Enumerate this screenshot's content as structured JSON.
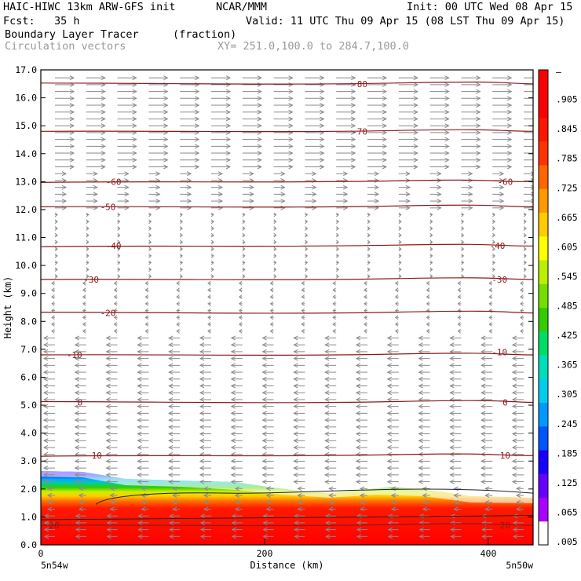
{
  "header": {
    "model": "HAIC-HIWC 13km ARW-GFS init",
    "org": "NCAR/MMM",
    "init": "Init: 00 UTC Wed 08 Apr 15",
    "fcst": "Fcst:   35 h",
    "valid": "Valid: 11 UTC Thu 09 Apr 15 (08 LST Thu 09 Apr 15)",
    "field": "Boundary Layer Tracer",
    "field_unit": "(fraction)",
    "vectors": "Circulation vectors",
    "xy": "XY= 251.0,100.0 to 284.7,100.0"
  },
  "chart_data": {
    "type": "cross-section",
    "xlabel": "Distance (km)",
    "ylabel": "Height (km)",
    "xlim": [
      0,
      440
    ],
    "ylim": [
      0,
      17
    ],
    "x_ticks": [
      "0",
      "200",
      "400"
    ],
    "x_endpoints": {
      "left": "5n54w",
      "right": "5n50w"
    },
    "y_ticks": [
      "0.0",
      "1.0",
      "2.0",
      "3.0",
      "4.0",
      "5.0",
      "6.0",
      "7.0",
      "8.0",
      "9.0",
      "10.0",
      "11.0",
      "12.0",
      "13.0",
      "14.0",
      "15.0",
      "16.0",
      "17.0"
    ],
    "colorbar_labels": [
      ".005",
      ".065",
      ".125",
      ".185",
      ".245",
      ".305",
      ".365",
      ".425",
      ".485",
      ".545",
      ".605",
      ".665",
      ".725",
      ".785",
      ".845",
      ".905",
      "–"
    ],
    "colorbar_colors": [
      "#ffffff",
      "#aa00ff",
      "#6600ff",
      "#1a00ff",
      "#0055ff",
      "#0099ff",
      "#00ccee",
      "#00ddbb",
      "#00dd66",
      "#33cc00",
      "#77dd00",
      "#bbee00",
      "#ffff00",
      "#ffcc00",
      "#ff9900",
      "#ff6600",
      "#ff3300",
      "#ff1500",
      "#ff0000",
      "#ff0000"
    ],
    "contour_color": "#8b1a1a",
    "temperature_contours": [
      {
        "label": "-80",
        "height": 16.5,
        "label_x": 285
      },
      {
        "label": "-70",
        "height": 14.8,
        "label_x": 285
      },
      {
        "label": "-60",
        "height": 13.0,
        "label_x": 65
      },
      {
        "label": "-60",
        "height": 13.0,
        "label_x": 415
      },
      {
        "label": "-50",
        "height": 12.1,
        "label_x": 60
      },
      {
        "label": "-40",
        "height": 10.7,
        "label_x": 65
      },
      {
        "label": "-40",
        "height": 10.7,
        "label_x": 408
      },
      {
        "label": "-30",
        "height": 9.5,
        "label_x": 45
      },
      {
        "label": "-30",
        "height": 9.5,
        "label_x": 410
      },
      {
        "label": "-20",
        "height": 8.3,
        "label_x": 60
      },
      {
        "label": "-10",
        "height": 6.8,
        "label_x": 30
      },
      {
        "label": "-10",
        "height": 6.9,
        "label_x": 410
      },
      {
        "label": "0",
        "height": 5.1,
        "label_x": 35
      },
      {
        "label": "0",
        "height": 5.1,
        "label_x": 415
      },
      {
        "label": "10",
        "height": 3.2,
        "label_x": 50
      },
      {
        "label": "10",
        "height": 3.2,
        "label_x": 415
      },
      {
        "label": "20",
        "height": 0.7,
        "label_x": 12
      },
      {
        "label": "20",
        "height": 0.7,
        "label_x": 415
      }
    ]
  }
}
